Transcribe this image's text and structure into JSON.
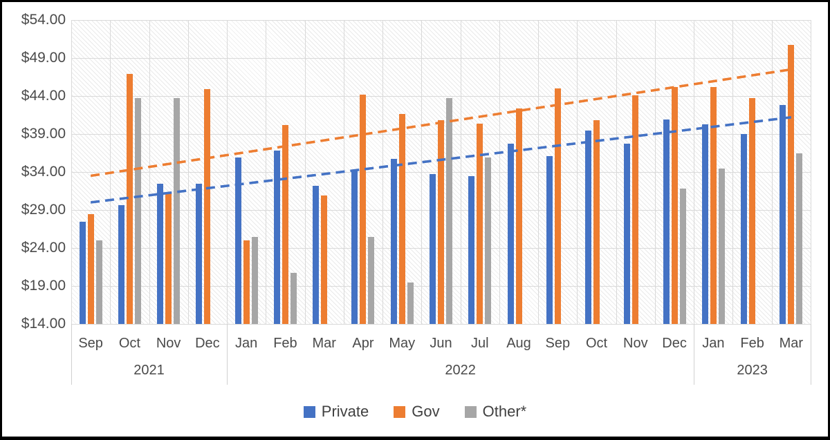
{
  "chart_data": {
    "type": "bar",
    "title": "",
    "xlabel": "",
    "ylabel": "",
    "y_axis": {
      "min": 14,
      "max": 54,
      "step": 5,
      "tick_labels_top_to_bottom": [
        "$54.00",
        "$49.00",
        "$44.00",
        "$39.00",
        "$34.00",
        "$29.00",
        "$24.00",
        "$19.00",
        "$14.00"
      ]
    },
    "categories": {
      "months": [
        "Sep",
        "Oct",
        "Nov",
        "Dec",
        "Jan",
        "Feb",
        "Mar",
        "Apr",
        "May",
        "Jun",
        "Jul",
        "Aug",
        "Sep",
        "Oct",
        "Nov",
        "Dec",
        "Jan",
        "Feb",
        "Mar"
      ],
      "year_groups": [
        {
          "label": "2021",
          "start": 0,
          "count": 4
        },
        {
          "label": "2022",
          "start": 4,
          "count": 12
        },
        {
          "label": "2023",
          "start": 16,
          "count": 3
        }
      ]
    },
    "series": [
      {
        "name": "Private",
        "color": "#4472C4",
        "values": [
          27.5,
          29.6,
          32.5,
          32.5,
          35.9,
          36.8,
          32.2,
          34.2,
          35.7,
          33.7,
          33.5,
          37.7,
          36.1,
          39.5,
          37.7,
          40.9,
          40.3,
          39.0,
          42.8
        ]
      },
      {
        "name": "Gov",
        "color": "#ED7D31",
        "values": [
          28.5,
          46.9,
          31.2,
          44.9,
          25.0,
          40.2,
          30.9,
          44.2,
          41.6,
          40.8,
          40.4,
          42.4,
          45.0,
          40.8,
          44.1,
          45.2,
          45.2,
          43.7,
          50.7
        ]
      },
      {
        "name": "Other*",
        "color": "#A6A6A6",
        "values": [
          25.0,
          43.7,
          43.7,
          null,
          25.5,
          20.7,
          null,
          25.5,
          19.5,
          43.7,
          35.9,
          null,
          null,
          null,
          null,
          31.8,
          34.5,
          null,
          36.5
        ]
      }
    ],
    "trendlines": [
      {
        "series": "Private",
        "color": "#4472C4",
        "style": "dashed",
        "start_value": 30.0,
        "end_value": 41.2
      },
      {
        "series": "Gov",
        "color": "#ED7D31",
        "style": "dashed",
        "start_value": 33.5,
        "end_value": 47.5
      }
    ],
    "legend": {
      "position": "bottom",
      "items": [
        "Private",
        "Gov",
        "Other*"
      ]
    },
    "grid": true,
    "plot_background": "light-downward-diagonal-hatch"
  },
  "colors": {
    "private": "#4472C4",
    "gov": "#ED7D31",
    "other": "#A6A6A6",
    "gridline": "#D9D9D9",
    "axis_text": "#4A4A4A",
    "frame_border": "#000000"
  }
}
